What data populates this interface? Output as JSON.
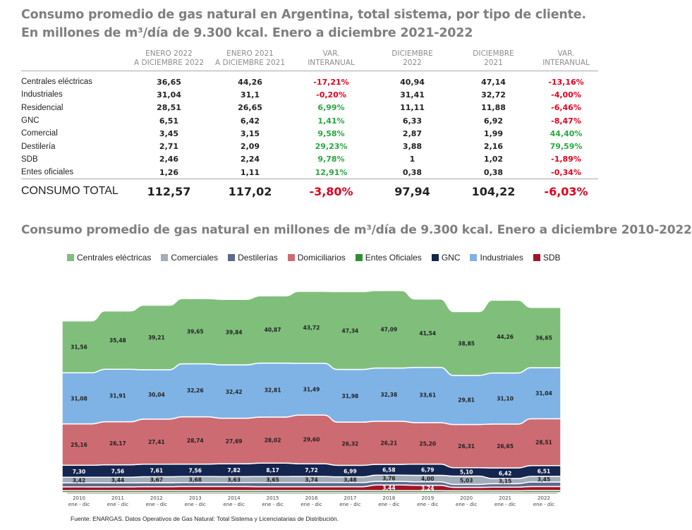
{
  "titles": {
    "line1": "Consumo promedio de gas natural en Argentina, total sistema, por tipo de cliente.",
    "line2": "En millones de m³/día de 9.300 kcal. Enero a diciembre 2021-2022",
    "chart": "Consumo promedio de gas natural en millones de m³/día de 9.300 kcal. Enero a diciembre 2010-2022"
  },
  "table": {
    "headers": [
      [
        "ENERO 2022",
        "A DICIEMBRE 2022"
      ],
      [
        "ENERO 2021",
        "A DICIEMBRE 2021"
      ],
      [
        "VAR.",
        "INTERANUAL"
      ],
      [
        "DICIEMBRE",
        "2022"
      ],
      [
        "DICIEMBRE",
        "2021"
      ],
      [
        "VAR.",
        "INTERANUAL"
      ]
    ],
    "rows": [
      {
        "label": "Centrales eléctricas",
        "v1": "36,65",
        "v2": "44,26",
        "var1": "-17,21%",
        "var1_sign": "neg",
        "v3": "40,94",
        "v4": "47,14",
        "var2": "-13,16%",
        "var2_sign": "neg"
      },
      {
        "label": "Industriales",
        "v1": "31,04",
        "v2": "31,1",
        "var1": "-0,20%",
        "var1_sign": "neg",
        "v3": "31,41",
        "v4": "32,72",
        "var2": "-4,00%",
        "var2_sign": "neg"
      },
      {
        "label": "Residencial",
        "v1": "28,51",
        "v2": "26,65",
        "var1": "6,99%",
        "var1_sign": "pos",
        "v3": "11,11",
        "v4": "11,88",
        "var2": "-6,46%",
        "var2_sign": "neg"
      },
      {
        "label": "GNC",
        "v1": "6,51",
        "v2": "6,42",
        "var1": "1,41%",
        "var1_sign": "pos",
        "v3": "6,33",
        "v4": "6,92",
        "var2": "-8,47%",
        "var2_sign": "neg"
      },
      {
        "label": "Comercial",
        "v1": "3,45",
        "v2": "3,15",
        "var1": "9,58%",
        "var1_sign": "pos",
        "v3": "2,87",
        "v4": "1,99",
        "var2": "44,40%",
        "var2_sign": "pos"
      },
      {
        "label": "Destilería",
        "v1": "2,71",
        "v2": "2,09",
        "var1": "29,23%",
        "var1_sign": "pos",
        "v3": "3,88",
        "v4": "2,16",
        "var2": "79,59%",
        "var2_sign": "pos"
      },
      {
        "label": "SDB",
        "v1": "2,46",
        "v2": "2,24",
        "var1": "9,78%",
        "var1_sign": "pos",
        "v3": "1",
        "v4": "1,02",
        "var2": "-1,89%",
        "var2_sign": "neg"
      },
      {
        "label": "Entes oficiales",
        "v1": "1,26",
        "v2": "1,11",
        "var1": "12,91%",
        "var1_sign": "pos",
        "v3": "0,38",
        "v4": "0,38",
        "var2": "-0,34%",
        "var2_sign": "neg"
      }
    ],
    "total": {
      "label": "CONSUMO TOTAL",
      "v1": "112,57",
      "v2": "117,02",
      "var1": "-3,80%",
      "var1_sign": "neg",
      "v3": "97,94",
      "v4": "104,22",
      "var2": "-6,03%",
      "var2_sign": "neg"
    }
  },
  "colors": {
    "neg": "#e3001b",
    "pos": "#27a83f"
  },
  "chart_data": {
    "type": "area",
    "title": "Consumo promedio de gas natural en millones de m³/día de 9.300 kcal. Enero a diciembre 2010-2022",
    "categories": [
      "2010",
      "2011",
      "2012",
      "2013",
      "2014",
      "2015",
      "2016",
      "2017",
      "2018",
      "2019",
      "2020",
      "2021",
      "2022"
    ],
    "category_sublabel": "ene - dic",
    "legend": [
      {
        "name": "Centrales eléctricas",
        "color": "#7fbf7b"
      },
      {
        "name": "Comerciales",
        "color": "#a3acb9"
      },
      {
        "name": "Destilerías",
        "color": "#5b6b8c"
      },
      {
        "name": "Domiciliarios",
        "color": "#cd6b72"
      },
      {
        "name": "Entes Oficiales",
        "color": "#2f8f2f"
      },
      {
        "name": "GNC",
        "color": "#14254f"
      },
      {
        "name": "Industriales",
        "color": "#7fb3e6"
      },
      {
        "name": "SDB",
        "color": "#a3132a"
      }
    ],
    "series": [
      {
        "name": "Entes Oficiales",
        "color": "#2f8f2f",
        "values": [
          1.2,
          1.2,
          1.2,
          1.2,
          1.2,
          1.2,
          1.2,
          1.2,
          1.2,
          1.2,
          1.1,
          1.11,
          1.26
        ]
      },
      {
        "name": "SDB",
        "color": "#a3132a",
        "values": [
          2.3,
          2.3,
          2.4,
          2.5,
          2.5,
          2.4,
          2.4,
          2.4,
          3.44,
          3.24,
          2.1,
          2.24,
          2.46
        ]
      },
      {
        "name": "Destilerías",
        "color": "#5b6b8c",
        "values": [
          2.4,
          2.4,
          2.4,
          2.4,
          2.4,
          2.5,
          2.5,
          2.5,
          2.2,
          2.1,
          1.8,
          2.09,
          2.71
        ]
      },
      {
        "name": "Comerciales",
        "color": "#a3acb9",
        "values": [
          3.42,
          3.44,
          3.67,
          3.68,
          3.63,
          3.65,
          3.74,
          3.48,
          3.76,
          4.0,
          5.03,
          3.15,
          3.45
        ]
      },
      {
        "name": "GNC",
        "color": "#14254f",
        "values": [
          7.3,
          7.56,
          7.61,
          7.56,
          7.82,
          8.17,
          7.72,
          6.99,
          6.58,
          6.79,
          5.1,
          6.42,
          6.51
        ]
      },
      {
        "name": "Domiciliarios",
        "color": "#cd6b72",
        "values": [
          25.16,
          26.17,
          27.41,
          28.74,
          27.69,
          28.02,
          29.6,
          26.32,
          26.21,
          25.2,
          26.31,
          26.65,
          28.51
        ]
      },
      {
        "name": "Industriales",
        "color": "#7fb3e6",
        "values": [
          31.08,
          31.91,
          30.04,
          32.26,
          32.42,
          32.81,
          31.49,
          31.98,
          32.38,
          33.61,
          29.81,
          31.1,
          31.04
        ]
      },
      {
        "name": "Centrales eléctricas",
        "color": "#7fbf7b",
        "values": [
          31.56,
          35.48,
          39.21,
          39.65,
          39.84,
          40.87,
          43.72,
          47.34,
          47.09,
          41.54,
          38.85,
          44.26,
          36.65
        ]
      }
    ],
    "labels": [
      {
        "series": "Centrales eléctricas",
        "text": [
          "31,56",
          "35,48",
          "39,21",
          "39,65",
          "39,84",
          "40,87",
          "43,72",
          "47,34",
          "47,09",
          "41,54",
          "38,85",
          "44,26",
          "36,65"
        ]
      },
      {
        "series": "Industriales",
        "text": [
          "31,08",
          "31,91",
          "30,04",
          "32,26",
          "32,42",
          "32,81",
          "31,49",
          "31,98",
          "32,38",
          "33,61",
          "29,81",
          "31,10",
          "31,04"
        ]
      },
      {
        "series": "Domiciliarios",
        "text": [
          "25,16",
          "26,17",
          "27,41",
          "28,74",
          "27,69",
          "28,02",
          "29,60",
          "26,32",
          "26,21",
          "25,20",
          "26,31",
          "26,65",
          "28,51"
        ]
      },
      {
        "series": "GNC",
        "text": [
          "7,30",
          "7,56",
          "7,61",
          "7,56",
          "7,82",
          "8,17",
          "7,72",
          "6,99",
          "6,58",
          "6,79",
          "5,10",
          "6,42",
          "6,51"
        ]
      },
      {
        "series": "Comerciales",
        "text": [
          "3,42",
          "3,44",
          "3,67",
          "3,68",
          "3,63",
          "3,65",
          "3,74",
          "3,48",
          "3,76",
          "4,00",
          "5,03",
          "3,15",
          "3,45"
        ]
      },
      {
        "series": "SDB",
        "text": [
          "",
          "",
          "",
          "",
          "",
          "",
          "",
          "",
          "3,44",
          "3,24",
          "",
          "",
          ""
        ]
      }
    ]
  },
  "source": "Fuente: ENARGAS. Datos Operativos de Gas Natural: Total Sistema y Licenciatarias de Distribución."
}
